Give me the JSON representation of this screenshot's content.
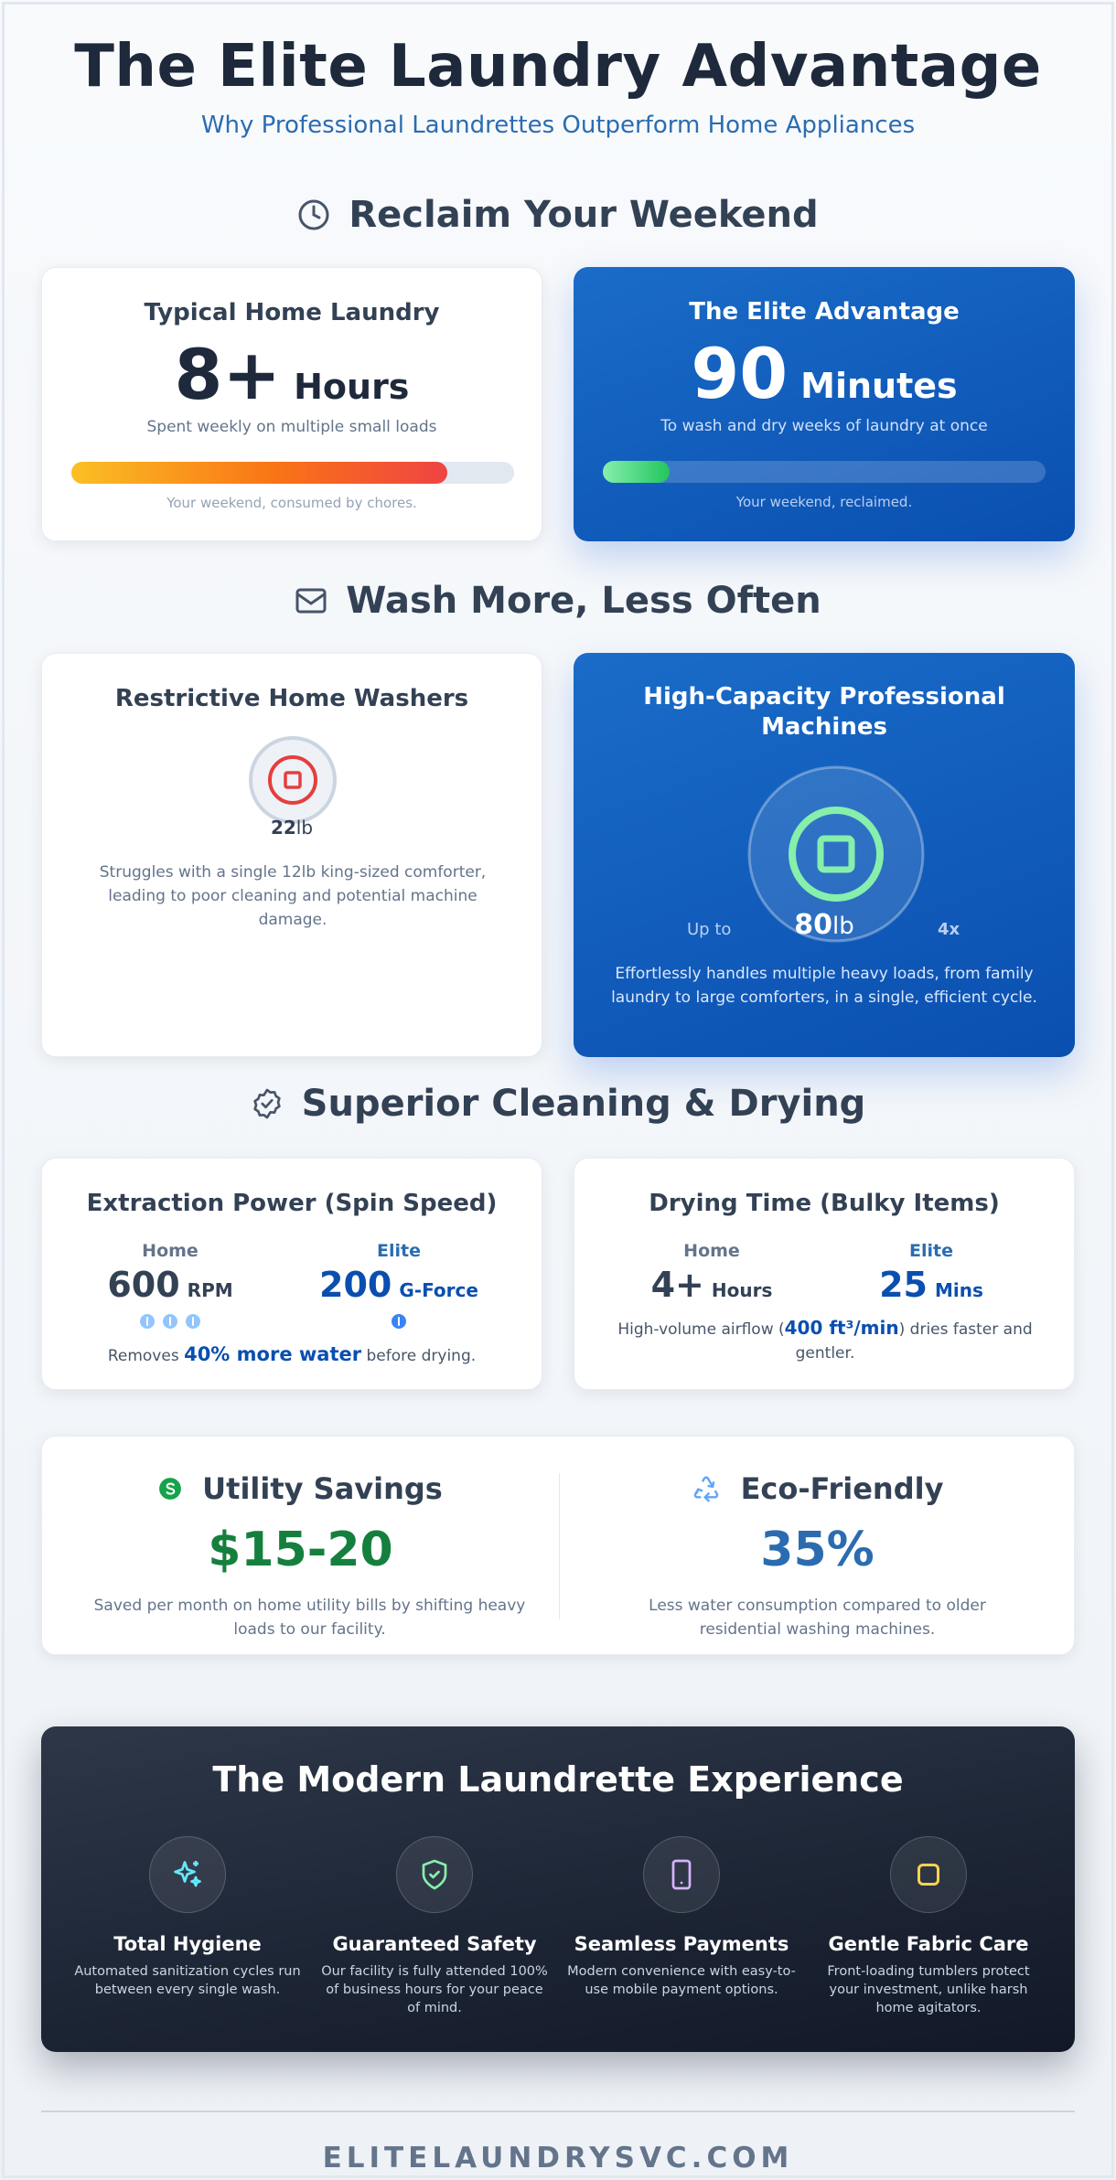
{
  "header": {
    "title": "The Elite Laundry Advantage",
    "subtitle": "Why Professional Laundrettes Outperform Home Appliances"
  },
  "weekend": {
    "section_title": "Reclaim Your Weekend",
    "icon": "clock-icon",
    "home": {
      "title": "Typical Home Laundry",
      "value": "8+",
      "unit": "Hours",
      "caption": "Spent weekly on multiple small loads",
      "progress": 0.85,
      "note": "Your weekend, consumed by chores."
    },
    "elite": {
      "title": "The Elite Advantage",
      "value": "90",
      "unit": "Minutes",
      "caption": "To wash and dry weeks of laundry at once",
      "progress": 0.15,
      "note": "Your weekend, reclaimed."
    }
  },
  "capacity": {
    "section_title": "Wash More, Less Often",
    "icon": "envelope-icon",
    "home": {
      "title": "Restrictive Home Washers",
      "value": "22",
      "unit": "lb",
      "description": "Struggles with a single 12lb king-sized comforter, leading to poor cleaning and potential machine damage."
    },
    "elite": {
      "title": "High-Capacity Professional Machines",
      "prefix": "Up to",
      "value": "80",
      "unit": "lb",
      "multiplier": "4x",
      "description": "Effortlessly handles multiple heavy loads, from family laundry to large comforters, in a single, efficient cycle."
    }
  },
  "cleaning": {
    "section_title": "Superior Cleaning & Drying",
    "icon": "badge-check-icon",
    "spin": {
      "title": "Extraction Power (Spin Speed)",
      "home_label": "Home",
      "home_value": "600",
      "home_unit": "RPM",
      "home_dots": 3,
      "elite_label": "Elite",
      "elite_value": "200",
      "elite_unit": "G-Force",
      "elite_dots": 1,
      "note_pre": "Removes ",
      "note_highlight": "40% more water",
      "note_post": " before drying."
    },
    "drying": {
      "title": "Drying Time (Bulky Items)",
      "home_label": "Home",
      "home_value": "4+",
      "home_unit": "Hours",
      "elite_label": "Elite",
      "elite_value": "25",
      "elite_unit": "Mins",
      "note_pre": "High-volume airflow (",
      "note_highlight": "400 ft³/min",
      "note_post": ") dries faster and gentler."
    }
  },
  "savings": {
    "utility": {
      "icon": "dollar-icon",
      "title": "Utility Savings",
      "value": "$15-20",
      "description": "Saved per month on home utility bills by shifting heavy loads to our facility."
    },
    "eco": {
      "icon": "recycle-icon",
      "title": "Eco-Friendly",
      "value": "35%",
      "description": "Less water consumption compared to older residential washing machines."
    }
  },
  "experience": {
    "title": "The Modern Laundrette Experience",
    "features": [
      {
        "icon": "sparkles-icon",
        "title": "Total Hygiene",
        "description": "Automated sanitization cycles run between every single wash."
      },
      {
        "icon": "shield-check-icon",
        "title": "Guaranteed Safety",
        "description": "Our facility is fully attended 100% of business hours for your peace of mind."
      },
      {
        "icon": "smartphone-icon",
        "title": "Seamless Payments",
        "description": "Modern convenience with easy-to-use mobile payment options."
      },
      {
        "icon": "square-icon",
        "title": "Gentle Fabric Care",
        "description": "Front-loading tumblers protect your investment, unlike harsh home agitators."
      }
    ]
  },
  "footer": {
    "text": "ELITELAUNDRYSVC.COM"
  },
  "colors": {
    "accent_blue": "#0a4fb0",
    "green": "#15803d",
    "eco_blue": "#2b6cb0"
  }
}
